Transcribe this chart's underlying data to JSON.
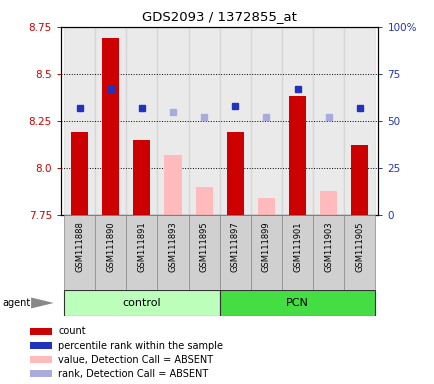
{
  "title": "GDS2093 / 1372855_at",
  "samples": [
    "GSM111888",
    "GSM111890",
    "GSM111891",
    "GSM111893",
    "GSM111895",
    "GSM111897",
    "GSM111899",
    "GSM111901",
    "GSM111903",
    "GSM111905"
  ],
  "bar_values": [
    8.19,
    8.69,
    8.15,
    null,
    null,
    8.19,
    null,
    8.38,
    null,
    8.12
  ],
  "bar_absent": [
    null,
    null,
    null,
    8.07,
    7.9,
    null,
    7.84,
    null,
    7.88,
    null
  ],
  "rank_present": [
    8.32,
    8.42,
    8.32,
    null,
    null,
    8.33,
    null,
    8.42,
    null,
    8.32
  ],
  "rank_absent": [
    null,
    null,
    null,
    8.3,
    8.27,
    null,
    8.27,
    null,
    8.27,
    null
  ],
  "ylim_left": [
    7.75,
    8.75
  ],
  "ylim_right": [
    0,
    100
  ],
  "yticks_left": [
    7.75,
    8.0,
    8.25,
    8.5,
    8.75
  ],
  "yticks_right": [
    0,
    25,
    50,
    75,
    100
  ],
  "ytick_right_labels": [
    "0",
    "25",
    "50",
    "75",
    "100%"
  ],
  "bar_base": 7.75,
  "bar_width": 0.55,
  "col_bg_color": "#cccccc",
  "col_bg_alpha": 0.4,
  "bar_color": "#cc0000",
  "bar_absent_color": "#ffbbbb",
  "rank_color": "#2233bb",
  "rank_absent_color": "#aaaadd",
  "ctrl_color": "#bbffbb",
  "pcn_color": "#44dd44",
  "legend": [
    {
      "color": "#cc0000",
      "label": "count"
    },
    {
      "color": "#2233bb",
      "label": "percentile rank within the sample"
    },
    {
      "color": "#ffbbbb",
      "label": "value, Detection Call = ABSENT"
    },
    {
      "color": "#aaaadd",
      "label": "rank, Detection Call = ABSENT"
    }
  ]
}
